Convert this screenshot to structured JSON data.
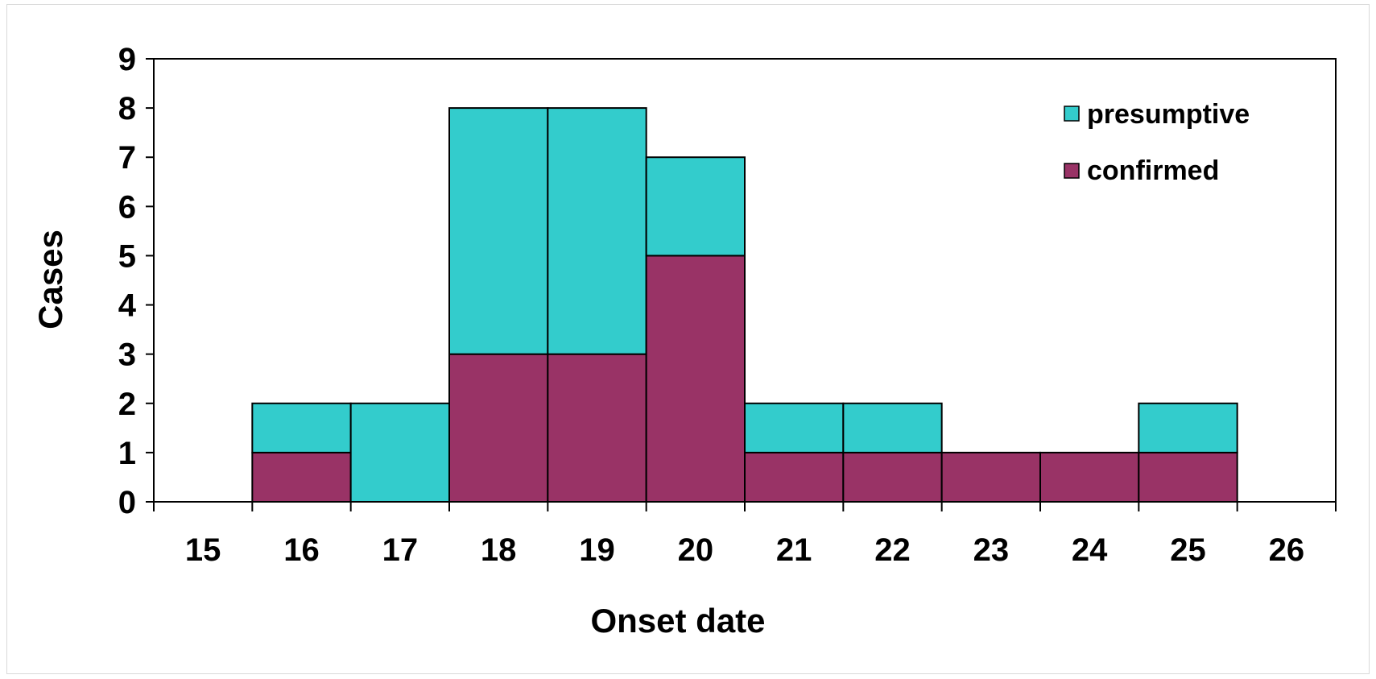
{
  "chart_data": {
    "type": "bar",
    "stacked": true,
    "categories": [
      "15",
      "16",
      "17",
      "18",
      "19",
      "20",
      "21",
      "22",
      "23",
      "24",
      "25",
      "26"
    ],
    "series": [
      {
        "name": "confirmed",
        "color": "#993366",
        "values": [
          0,
          1,
          0,
          3,
          3,
          5,
          1,
          1,
          1,
          1,
          1,
          0
        ]
      },
      {
        "name": "presumptive",
        "color": "#33CCCC",
        "values": [
          0,
          1,
          2,
          5,
          5,
          2,
          1,
          1,
          0,
          0,
          1,
          0
        ]
      }
    ],
    "title": "",
    "xlabel": "Onset date",
    "ylabel": "Cases",
    "ylim": [
      0,
      9
    ],
    "yticks": [
      "0",
      "1",
      "2",
      "3",
      "4",
      "5",
      "6",
      "7",
      "8",
      "9"
    ],
    "legend_entries": [
      "presumptive",
      "confirmed"
    ],
    "legend_position": "top-right",
    "grid": false
  }
}
